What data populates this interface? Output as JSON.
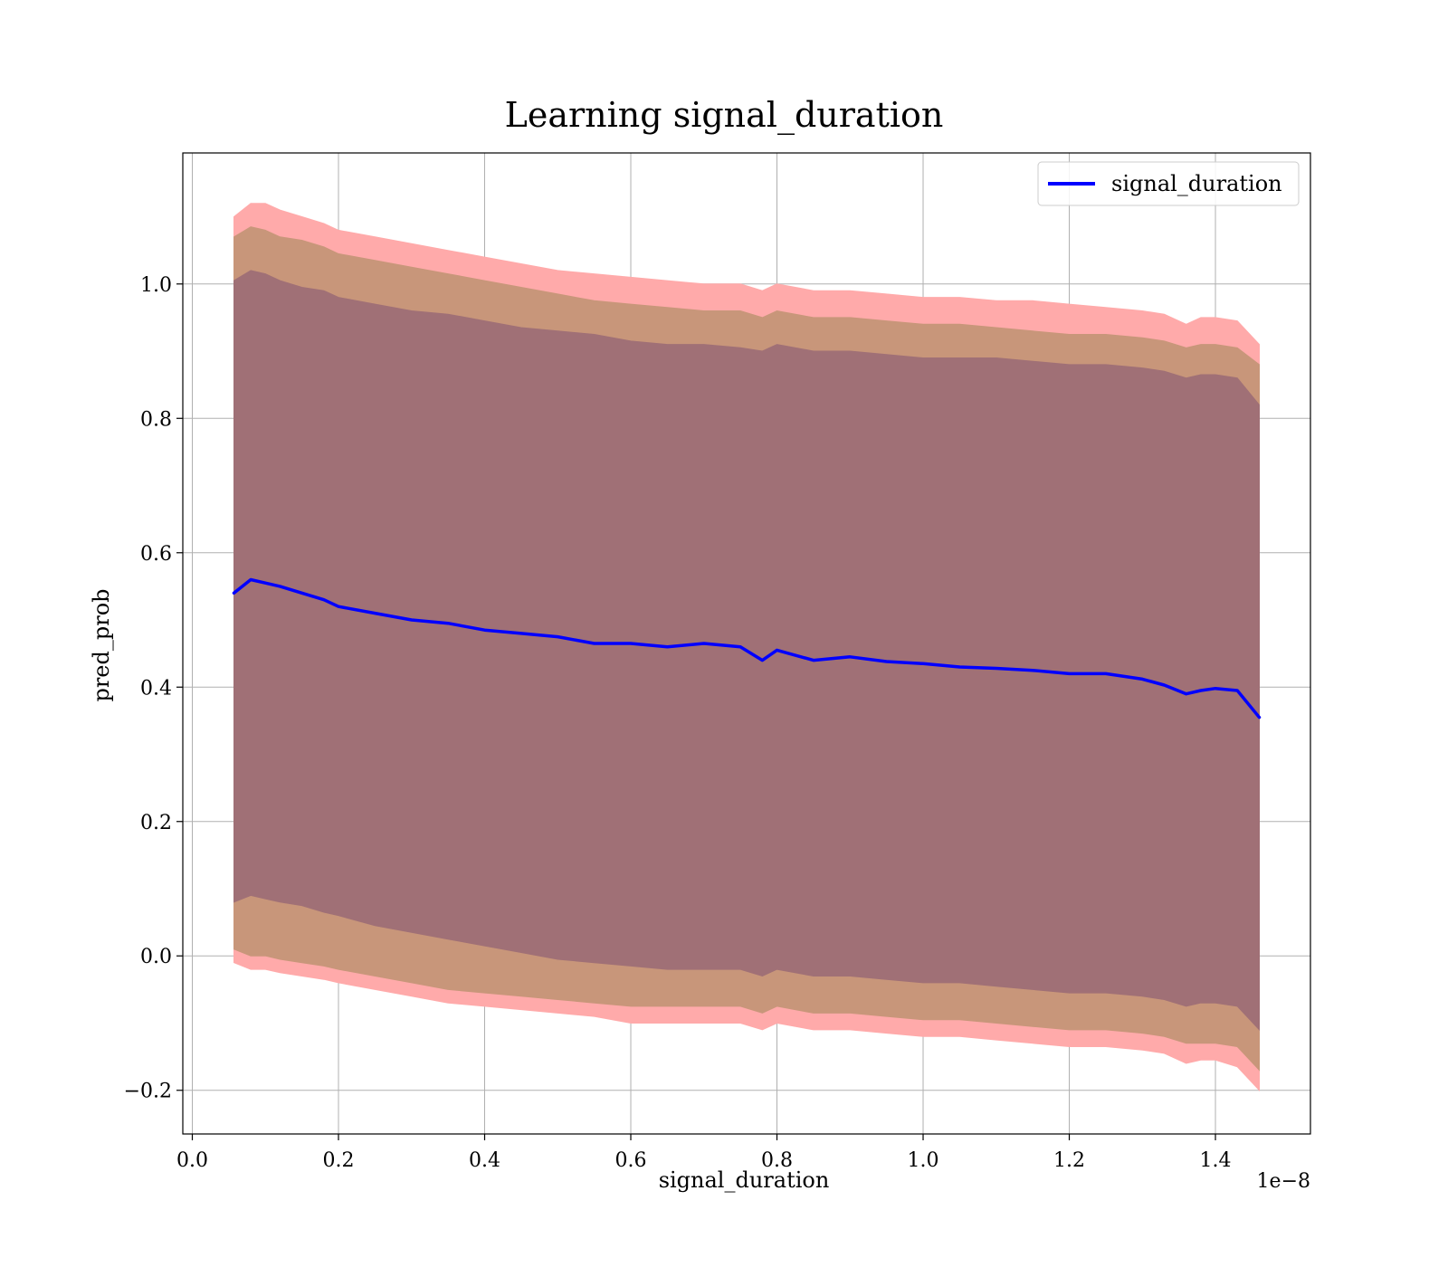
{
  "chart_data": {
    "type": "line",
    "title": "Learning signal_duration",
    "xlabel": "signal_duration",
    "ylabel": "pred_prob",
    "x_offset_label": "1e−8",
    "xlim": [
      -0.013,
      1.53
    ],
    "ylim": [
      -0.265,
      1.195
    ],
    "x_ticks": [
      0.0,
      0.2,
      0.4,
      0.6,
      0.8,
      1.0,
      1.2,
      1.4
    ],
    "x_tick_labels": [
      "0.0",
      "0.2",
      "0.4",
      "0.6",
      "0.8",
      "1.0",
      "1.2",
      "1.4"
    ],
    "y_ticks": [
      -0.2,
      0.0,
      0.2,
      0.4,
      0.6,
      0.8,
      1.0
    ],
    "y_tick_labels": [
      "−0.2",
      "0.0",
      "0.2",
      "0.4",
      "0.6",
      "0.8",
      "1.0"
    ],
    "grid": true,
    "legend_position": "top-right",
    "colors": {
      "line": "#0000ff",
      "band_outer": "#ffaaaa",
      "band_middle": "#c8967a",
      "band_inner": "#a07076",
      "grid": "#b0b0b0"
    },
    "series": [
      {
        "name": "signal_duration",
        "x": [
          0.057,
          0.08,
          0.1,
          0.12,
          0.15,
          0.18,
          0.2,
          0.25,
          0.3,
          0.35,
          0.4,
          0.45,
          0.5,
          0.55,
          0.6,
          0.65,
          0.7,
          0.75,
          0.78,
          0.8,
          0.85,
          0.9,
          0.95,
          1.0,
          1.05,
          1.1,
          1.15,
          1.2,
          1.25,
          1.3,
          1.33,
          1.36,
          1.38,
          1.4,
          1.43,
          1.46
        ],
        "y": [
          0.54,
          0.56,
          0.555,
          0.55,
          0.54,
          0.53,
          0.52,
          0.51,
          0.5,
          0.495,
          0.485,
          0.48,
          0.475,
          0.465,
          0.465,
          0.46,
          0.465,
          0.46,
          0.44,
          0.455,
          0.44,
          0.445,
          0.438,
          0.435,
          0.43,
          0.428,
          0.425,
          0.42,
          0.42,
          0.412,
          0.403,
          0.39,
          0.395,
          0.398,
          0.395,
          0.355
        ]
      }
    ],
    "bands": [
      {
        "x": [
          0.057,
          0.08,
          0.1,
          0.12,
          0.15,
          0.18,
          0.2,
          0.25,
          0.3,
          0.35,
          0.4,
          0.45,
          0.5,
          0.55,
          0.6,
          0.65,
          0.7,
          0.75,
          0.78,
          0.8,
          0.85,
          0.9,
          0.95,
          1.0,
          1.05,
          1.1,
          1.15,
          1.2,
          1.25,
          1.3,
          1.33,
          1.36,
          1.38,
          1.4,
          1.43,
          1.46
        ],
        "lower": [
          -0.01,
          -0.02,
          -0.02,
          -0.025,
          -0.03,
          -0.035,
          -0.04,
          -0.05,
          -0.06,
          -0.07,
          -0.075,
          -0.08,
          -0.085,
          -0.09,
          -0.1,
          -0.1,
          -0.1,
          -0.1,
          -0.11,
          -0.1,
          -0.11,
          -0.11,
          -0.115,
          -0.12,
          -0.12,
          -0.125,
          -0.13,
          -0.135,
          -0.135,
          -0.14,
          -0.145,
          -0.16,
          -0.155,
          -0.155,
          -0.165,
          -0.2
        ],
        "upper": [
          1.1,
          1.12,
          1.12,
          1.11,
          1.1,
          1.09,
          1.08,
          1.07,
          1.06,
          1.05,
          1.04,
          1.03,
          1.02,
          1.015,
          1.01,
          1.005,
          1.0,
          1.0,
          0.99,
          1.0,
          0.99,
          0.99,
          0.985,
          0.98,
          0.98,
          0.975,
          0.975,
          0.97,
          0.965,
          0.96,
          0.955,
          0.94,
          0.95,
          0.95,
          0.945,
          0.91
        ]
      },
      {
        "x": [
          0.057,
          0.08,
          0.1,
          0.12,
          0.15,
          0.18,
          0.2,
          0.25,
          0.3,
          0.35,
          0.4,
          0.45,
          0.5,
          0.55,
          0.6,
          0.65,
          0.7,
          0.75,
          0.78,
          0.8,
          0.85,
          0.9,
          0.95,
          1.0,
          1.05,
          1.1,
          1.15,
          1.2,
          1.25,
          1.3,
          1.33,
          1.36,
          1.38,
          1.4,
          1.43,
          1.46
        ],
        "lower": [
          0.01,
          0.0,
          0.0,
          -0.005,
          -0.01,
          -0.015,
          -0.02,
          -0.03,
          -0.04,
          -0.05,
          -0.055,
          -0.06,
          -0.065,
          -0.07,
          -0.075,
          -0.075,
          -0.075,
          -0.075,
          -0.085,
          -0.075,
          -0.085,
          -0.085,
          -0.09,
          -0.095,
          -0.095,
          -0.1,
          -0.105,
          -0.11,
          -0.11,
          -0.115,
          -0.12,
          -0.13,
          -0.13,
          -0.13,
          -0.135,
          -0.17
        ],
        "upper": [
          1.07,
          1.085,
          1.08,
          1.07,
          1.065,
          1.055,
          1.045,
          1.035,
          1.025,
          1.015,
          1.005,
          0.995,
          0.985,
          0.975,
          0.97,
          0.965,
          0.96,
          0.96,
          0.95,
          0.96,
          0.95,
          0.95,
          0.945,
          0.94,
          0.94,
          0.935,
          0.93,
          0.925,
          0.925,
          0.92,
          0.915,
          0.905,
          0.91,
          0.91,
          0.905,
          0.88
        ]
      },
      {
        "x": [
          0.057,
          0.08,
          0.1,
          0.12,
          0.15,
          0.18,
          0.2,
          0.25,
          0.3,
          0.35,
          0.4,
          0.45,
          0.5,
          0.55,
          0.6,
          0.65,
          0.7,
          0.75,
          0.78,
          0.8,
          0.85,
          0.9,
          0.95,
          1.0,
          1.05,
          1.1,
          1.15,
          1.2,
          1.25,
          1.3,
          1.33,
          1.36,
          1.38,
          1.4,
          1.43,
          1.46
        ],
        "lower": [
          0.08,
          0.09,
          0.085,
          0.08,
          0.075,
          0.065,
          0.06,
          0.045,
          0.035,
          0.025,
          0.015,
          0.005,
          -0.005,
          -0.01,
          -0.015,
          -0.02,
          -0.02,
          -0.02,
          -0.03,
          -0.02,
          -0.03,
          -0.03,
          -0.035,
          -0.04,
          -0.04,
          -0.045,
          -0.05,
          -0.055,
          -0.055,
          -0.06,
          -0.065,
          -0.075,
          -0.07,
          -0.07,
          -0.075,
          -0.11
        ],
        "upper": [
          1.005,
          1.02,
          1.015,
          1.005,
          0.995,
          0.99,
          0.98,
          0.97,
          0.96,
          0.955,
          0.945,
          0.935,
          0.93,
          0.925,
          0.915,
          0.91,
          0.91,
          0.905,
          0.9,
          0.91,
          0.9,
          0.9,
          0.895,
          0.89,
          0.89,
          0.89,
          0.885,
          0.88,
          0.88,
          0.875,
          0.87,
          0.86,
          0.865,
          0.865,
          0.86,
          0.82
        ]
      }
    ]
  }
}
